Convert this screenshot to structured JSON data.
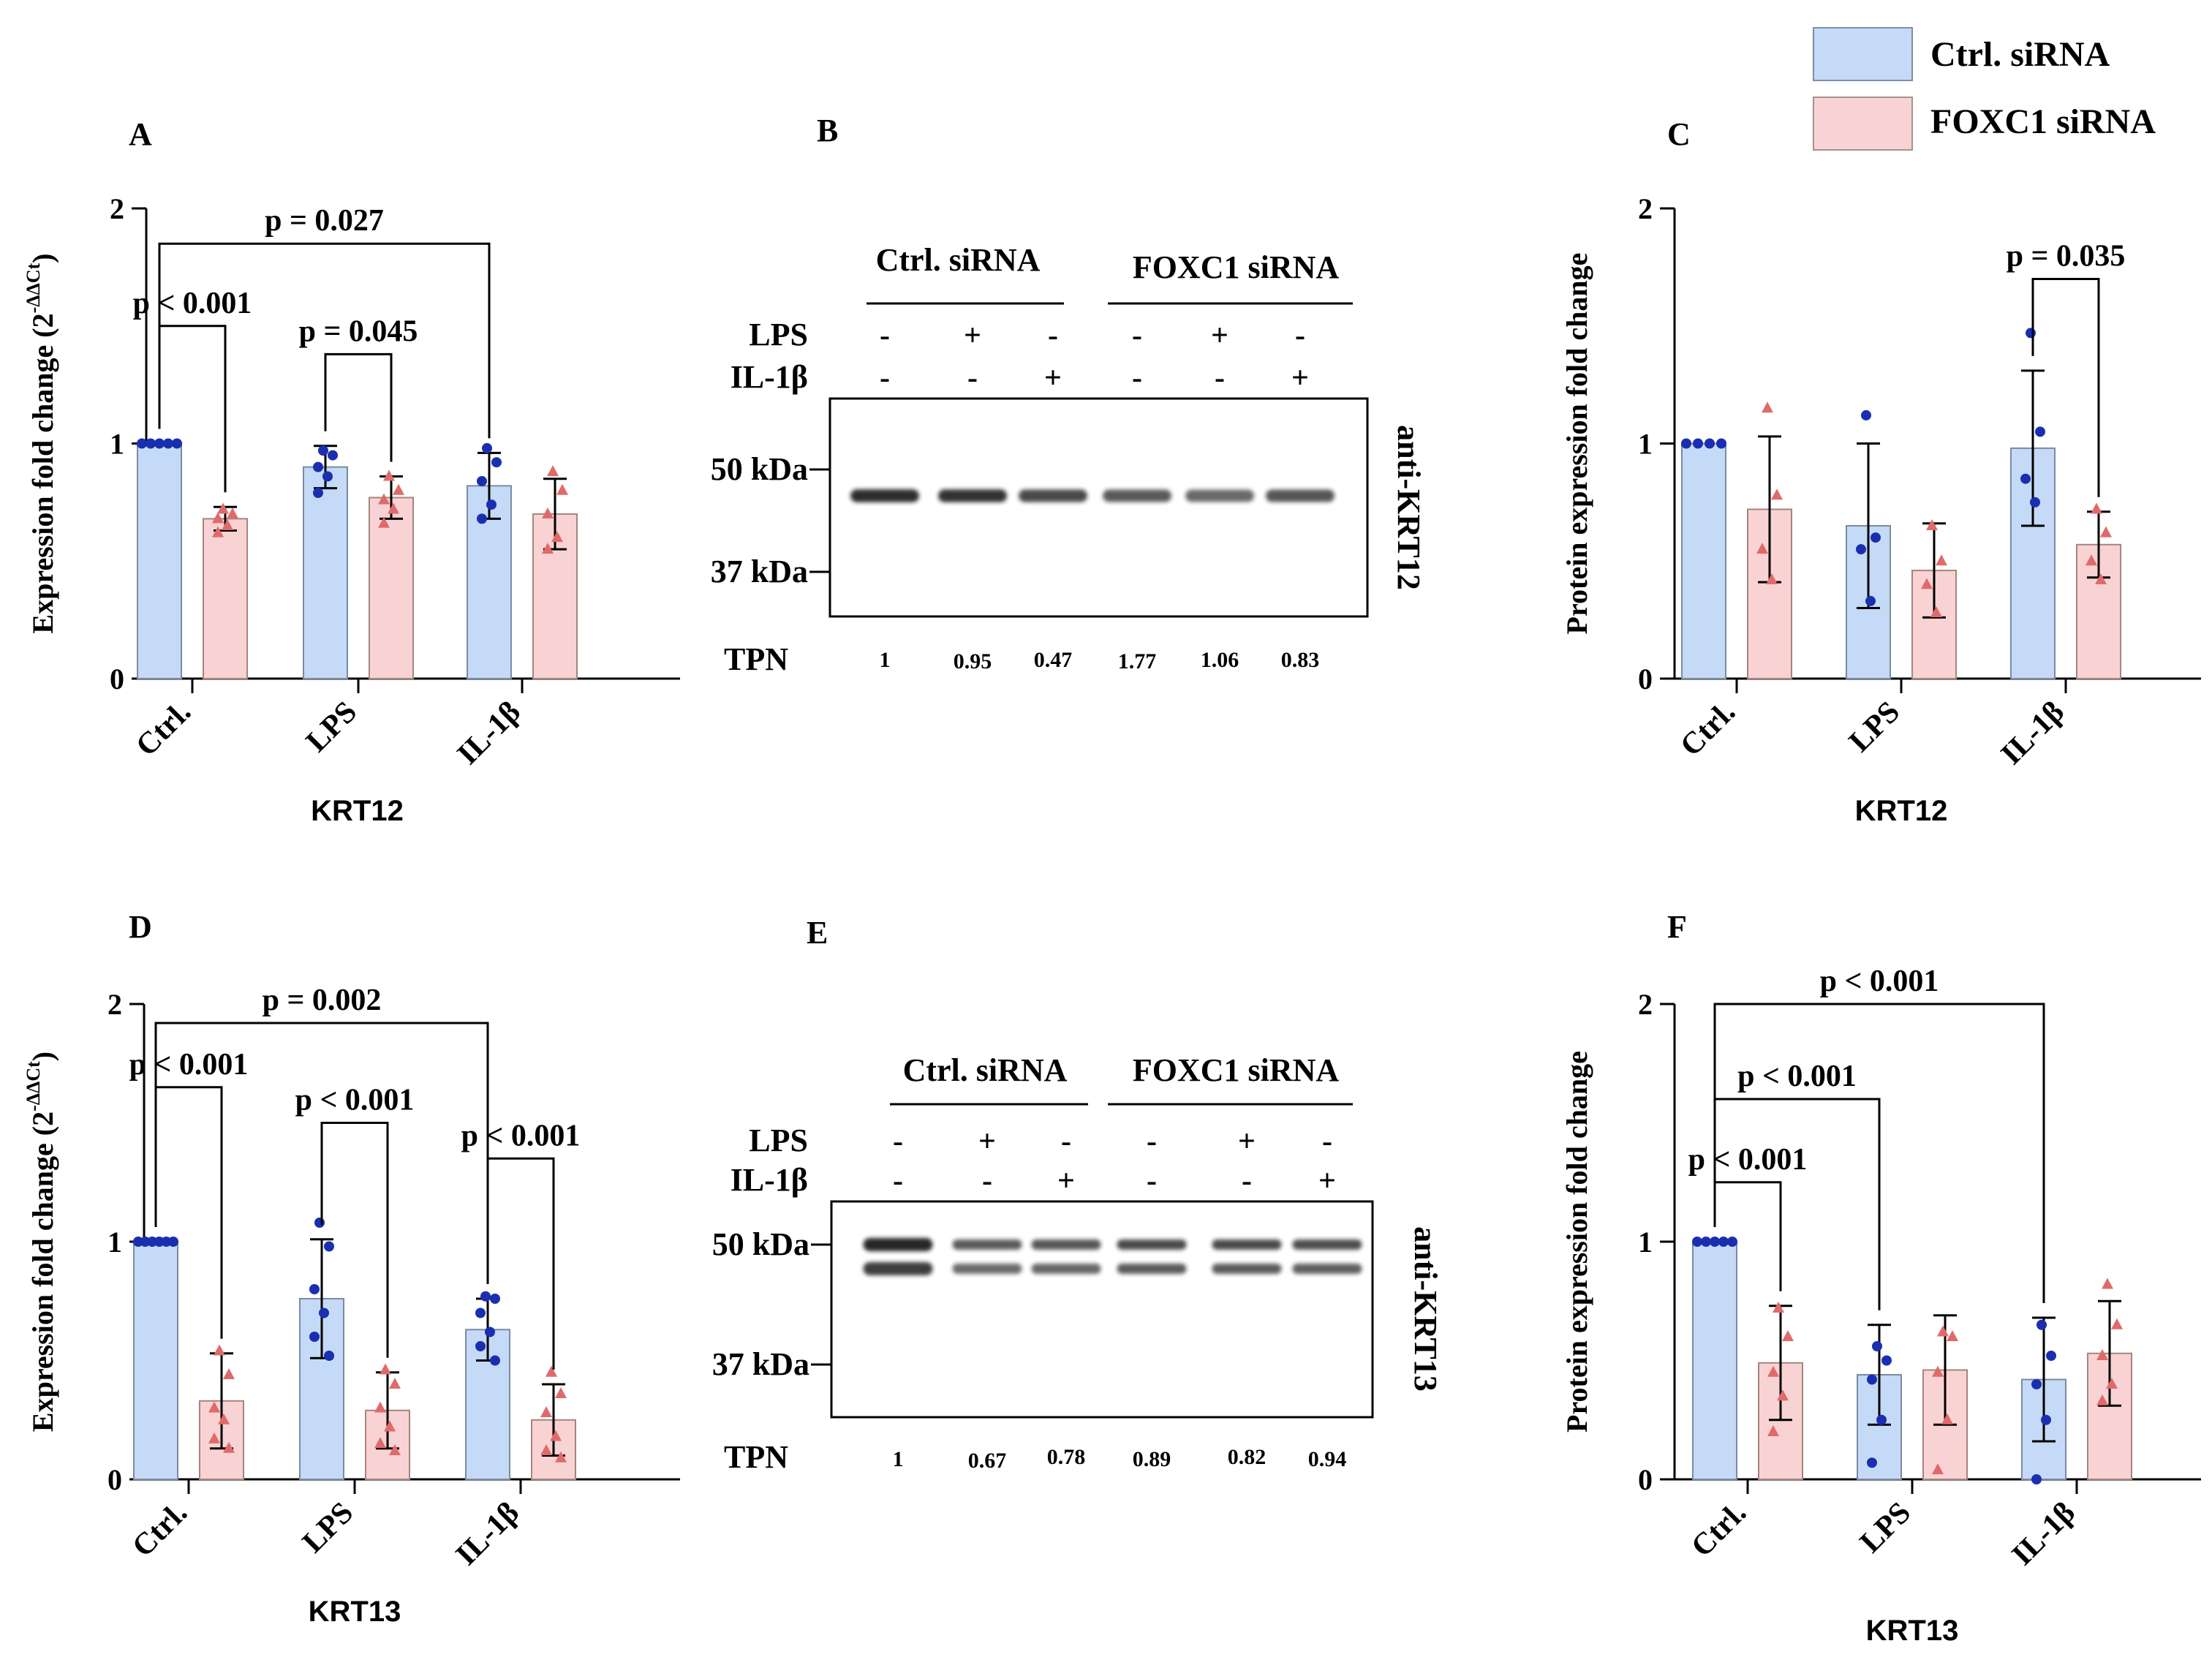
{
  "legend": {
    "placement": "top-right",
    "items": [
      {
        "label": "Ctrl. siRNA",
        "color": "#c5daf6"
      },
      {
        "label": "FOXC1 siRNA",
        "color": "#f9d3d3"
      }
    ]
  },
  "colors": {
    "ctrl_fill": "#c5daf6",
    "foxc1_fill": "#f9d3d3",
    "ctrl_point": "#1a2fb0",
    "foxc1_point": "#e06a6a"
  },
  "chart_data": [
    {
      "type": "bar",
      "panel": "A",
      "ylabel": "Expression fold change (2",
      "ylabel_sup": "-ΔΔCt",
      "ylabel_close": ")",
      "xlabel": "KRT12",
      "categories": [
        "Ctrl.",
        "LPS",
        "IL-1β"
      ],
      "ylim": [
        0,
        2
      ],
      "yticks": [
        "0",
        "1",
        "2"
      ],
      "series": [
        {
          "name": "Ctrl. siRNA",
          "values": [
            1.0,
            0.9,
            0.82
          ],
          "errors": [
            0.0,
            0.09,
            0.14
          ],
          "points": [
            [
              1,
              1,
              1,
              1,
              1
            ],
            [
              0.97,
              0.95,
              0.9,
              0.86,
              0.79
            ],
            [
              0.98,
              0.92,
              0.84,
              0.74,
              0.68
            ]
          ]
        },
        {
          "name": "FOXC1 siRNA",
          "values": [
            0.68,
            0.77,
            0.7
          ],
          "errors": [
            0.05,
            0.09,
            0.15
          ],
          "points": [
            [
              0.72,
              0.7,
              0.68,
              0.65,
              0.62
            ],
            [
              0.86,
              0.8,
              0.76,
              0.72,
              0.66
            ],
            [
              0.88,
              0.8,
              0.7,
              0.6,
              0.55
            ]
          ]
        }
      ],
      "annotations": [
        {
          "text": "p < 0.001",
          "from": 0,
          "from_series": 0,
          "to": 0,
          "to_series": 1,
          "y": 1.5
        },
        {
          "text": "p = 0.045",
          "from": 1,
          "from_series": 0,
          "to": 1,
          "to_series": 1,
          "y": 1.38
        },
        {
          "text": "p = 0.027",
          "from": 0,
          "from_series": 0,
          "to": 2,
          "to_series": 0,
          "y": 1.85
        }
      ]
    },
    {
      "type": "bar",
      "panel": "C",
      "ylabel": "Protein expression fold change",
      "xlabel": "KRT12",
      "categories": [
        "Ctrl.",
        "LPS",
        "IL-1β"
      ],
      "ylim": [
        0,
        2
      ],
      "yticks": [
        "0",
        "1",
        "2"
      ],
      "series": [
        {
          "name": "Ctrl. siRNA",
          "values": [
            1.0,
            0.65,
            0.98
          ],
          "errors": [
            0.0,
            0.35,
            0.33
          ],
          "points": [
            [
              1,
              1,
              1,
              1
            ],
            [
              1.12,
              0.6,
              0.55,
              0.33
            ],
            [
              1.47,
              1.05,
              0.85,
              0.75
            ]
          ]
        },
        {
          "name": "FOXC1 siRNA",
          "values": [
            0.72,
            0.46,
            0.57
          ],
          "errors": [
            0.31,
            0.2,
            0.14
          ],
          "points": [
            [
              1.15,
              0.78,
              0.55,
              0.42
            ],
            [
              0.65,
              0.5,
              0.4,
              0.28
            ],
            [
              0.72,
              0.62,
              0.5,
              0.42
            ]
          ]
        }
      ],
      "annotations": [
        {
          "text": "p = 0.035",
          "from": 2,
          "from_series": 0,
          "to": 2,
          "to_series": 1,
          "y": 1.7
        }
      ]
    },
    {
      "type": "bar",
      "panel": "D",
      "ylabel": "Expression fold change (2",
      "ylabel_sup": "-ΔΔCt",
      "ylabel_close": ")",
      "xlabel": "KRT13",
      "categories": [
        "Ctrl.",
        "LPS",
        "IL-1β"
      ],
      "ylim": [
        0,
        2
      ],
      "yticks": [
        "0",
        "1",
        "2"
      ],
      "series": [
        {
          "name": "Ctrl. siRNA",
          "values": [
            1.0,
            0.76,
            0.63
          ],
          "errors": [
            0.0,
            0.25,
            0.13
          ],
          "points": [
            [
              1,
              1,
              1,
              1,
              1,
              1
            ],
            [
              1.08,
              0.98,
              0.8,
              0.7,
              0.6,
              0.52
            ],
            [
              0.77,
              0.76,
              0.7,
              0.62,
              0.56,
              0.5
            ]
          ]
        },
        {
          "name": "FOXC1 siRNA",
          "values": [
            0.33,
            0.29,
            0.25
          ],
          "errors": [
            0.2,
            0.16,
            0.15
          ],
          "points": [
            [
              0.54,
              0.44,
              0.3,
              0.25,
              0.17,
              0.13
            ],
            [
              0.46,
              0.4,
              0.3,
              0.22,
              0.15,
              0.12
            ],
            [
              0.45,
              0.36,
              0.28,
              0.18,
              0.12,
              0.09
            ]
          ]
        }
      ],
      "annotations": [
        {
          "text": "p < 0.001",
          "from": 0,
          "from_series": 0,
          "to": 0,
          "to_series": 1,
          "y": 1.65
        },
        {
          "text": "p < 0.001",
          "from": 1,
          "from_series": 0,
          "to": 1,
          "to_series": 1,
          "y": 1.5
        },
        {
          "text": "p < 0.001",
          "from": 2,
          "from_series": 0,
          "to": 2,
          "to_series": 1,
          "y": 1.35
        },
        {
          "text": "p = 0.002",
          "from": 0,
          "from_series": 0,
          "to": 2,
          "to_series": 0,
          "y": 1.92
        }
      ]
    },
    {
      "type": "bar",
      "panel": "F",
      "ylabel": "Protein expression fold change",
      "xlabel": "KRT13",
      "categories": [
        "Ctrl.",
        "LPS",
        "IL-1β"
      ],
      "ylim": [
        0,
        2
      ],
      "yticks": [
        "0",
        "1",
        "2"
      ],
      "series": [
        {
          "name": "Ctrl. siRNA",
          "values": [
            1.0,
            0.44,
            0.42
          ],
          "errors": [
            0.0,
            0.21,
            0.26
          ],
          "points": [
            [
              1,
              1,
              1,
              1,
              1
            ],
            [
              0.56,
              0.5,
              0.42,
              0.25,
              0.07
            ],
            [
              0.65,
              0.52,
              0.4,
              0.25,
              0.0
            ]
          ]
        },
        {
          "name": "FOXC1 siRNA",
          "values": [
            0.49,
            0.46,
            0.53
          ],
          "errors": [
            0.24,
            0.23,
            0.22
          ],
          "points": [
            [
              0.72,
              0.6,
              0.45,
              0.35,
              0.2
            ],
            [
              0.62,
              0.6,
              0.45,
              0.25,
              0.04
            ],
            [
              0.82,
              0.65,
              0.52,
              0.4,
              0.33
            ]
          ]
        }
      ],
      "annotations": [
        {
          "text": "p < 0.001",
          "from": 0,
          "from_series": 0,
          "to": 0,
          "to_series": 1,
          "y": 1.25
        },
        {
          "text": "p < 0.001",
          "from": 0,
          "from_series": 0,
          "to": 1,
          "to_series": 0,
          "y": 1.6
        },
        {
          "text": "p < 0.001",
          "from": 0,
          "from_series": 0,
          "to": 2,
          "to_series": 0,
          "y": 2.0
        }
      ]
    }
  ],
  "blots": [
    {
      "panel": "B",
      "groups": [
        "Ctrl. siRNA",
        "FOXC1 siRNA"
      ],
      "row_labels": [
        "LPS",
        "IL-1β"
      ],
      "lps": [
        "-",
        "+",
        "-",
        "-",
        "+",
        "-"
      ],
      "il1b": [
        "-",
        "-",
        "+",
        "-",
        "-",
        "+"
      ],
      "markers": [
        "50 kDa",
        "37 kDa"
      ],
      "antibody": "anti-KRT12",
      "tpn_label": "TPN",
      "tpn": [
        "1",
        "0.95",
        "0.47",
        "1.77",
        "1.06",
        "0.83"
      ],
      "band_intensity": [
        0.92,
        0.9,
        0.8,
        0.72,
        0.66,
        0.74
      ]
    },
    {
      "panel": "E",
      "groups": [
        "Ctrl. siRNA",
        "FOXC1 siRNA"
      ],
      "row_labels": [
        "LPS",
        "IL-1β"
      ],
      "lps": [
        "-",
        "+",
        "-",
        "-",
        "+",
        "-"
      ],
      "il1b": [
        "-",
        "-",
        "+",
        "-",
        "-",
        "+"
      ],
      "markers": [
        "50 kDa",
        "37 kDa"
      ],
      "antibody": "anti-KRT13",
      "tpn_label": "TPN",
      "tpn": [
        "1",
        "0.67",
        "0.78",
        "0.89",
        "0.82",
        "0.94"
      ],
      "band_intensity": [
        0.95,
        0.72,
        0.74,
        0.8,
        0.8,
        0.78
      ]
    }
  ]
}
